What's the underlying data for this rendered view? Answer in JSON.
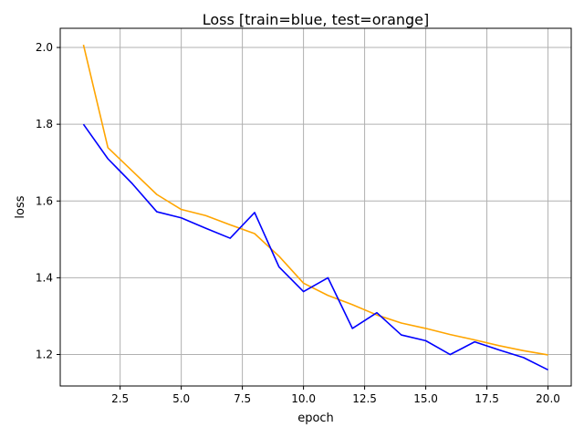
{
  "chart_data": {
    "type": "line",
    "title": "Loss [train=blue, test=orange]",
    "xlabel": "epoch",
    "ylabel": "loss",
    "xlim": [
      0.05,
      20.95
    ],
    "ylim": [
      1.118,
      2.05
    ],
    "xticks": [
      2.5,
      5.0,
      7.5,
      10.0,
      12.5,
      15.0,
      17.5,
      20.0
    ],
    "xtick_labels": [
      "2.5",
      "5.0",
      "7.5",
      "10.0",
      "12.5",
      "15.0",
      "17.5",
      "20.0"
    ],
    "yticks": [
      1.2,
      1.4,
      1.6,
      1.8,
      2.0
    ],
    "ytick_labels": [
      "1.2",
      "1.4",
      "1.6",
      "1.8",
      "2.0"
    ],
    "grid": true,
    "x": [
      1,
      2,
      3,
      4,
      5,
      6,
      7,
      8,
      9,
      10,
      11,
      12,
      13,
      14,
      15,
      16,
      17,
      18,
      19,
      20
    ],
    "series": [
      {
        "color": "#0000ff",
        "values": [
          1.8,
          1.71,
          1.645,
          1.572,
          1.556,
          1.529,
          1.503,
          1.57,
          1.428,
          1.364,
          1.4,
          1.268,
          1.309,
          1.251,
          1.236,
          1.2,
          1.233,
          1.212,
          1.192,
          1.16
        ]
      },
      {
        "color": "#ffa500",
        "values": [
          2.007,
          1.739,
          1.678,
          1.617,
          1.578,
          1.562,
          1.538,
          1.515,
          1.456,
          1.386,
          1.354,
          1.33,
          1.303,
          1.282,
          1.268,
          1.252,
          1.238,
          1.223,
          1.21,
          1.199
        ]
      }
    ]
  }
}
